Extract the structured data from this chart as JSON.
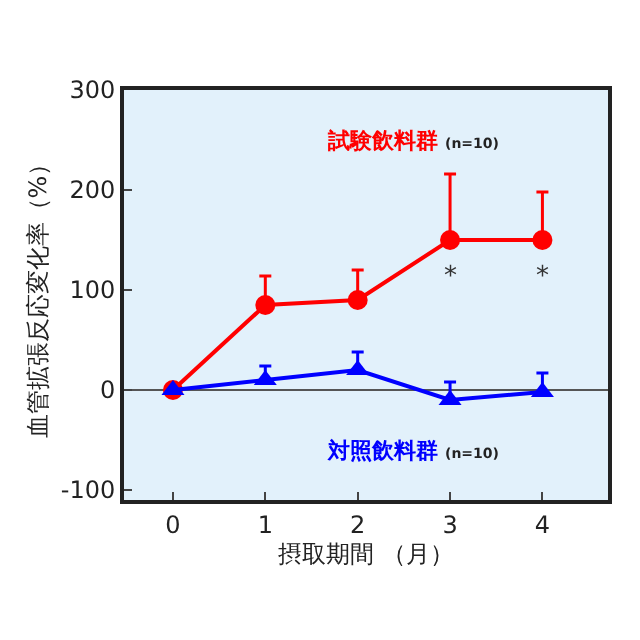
{
  "chart_data": {
    "type": "line",
    "xlabel": "摂取期間 （月）",
    "ylabel": "血管拡張反応変化率（%）",
    "x": [
      0,
      1,
      2,
      3,
      4
    ],
    "xlim": [
      -0.53,
      4.71
    ],
    "xticks": [
      0,
      1,
      2,
      3,
      4
    ],
    "ylim": [
      -110,
      300
    ],
    "yticks": [
      -100,
      0,
      100,
      200,
      300
    ],
    "grid": false,
    "legend": false,
    "series": [
      {
        "name": "試験飲料群 (n=10)",
        "color": "#ff0000",
        "marker": "circle",
        "values": [
          0,
          85,
          90,
          150,
          150
        ],
        "errors": [
          null,
          [
            85,
            114
          ],
          [
            90,
            120
          ],
          [
            150,
            216
          ],
          [
            150,
            198
          ]
        ]
      },
      {
        "name": "対照飲料群 (n=10)",
        "color": "#0000ff",
        "marker": "triangle",
        "values": [
          0,
          10,
          20,
          -10,
          -2
        ],
        "errors": [
          null,
          [
            10,
            24
          ],
          [
            20,
            38
          ],
          [
            -10,
            8
          ],
          [
            -2,
            17
          ]
        ]
      }
    ],
    "ref_lines": [
      {
        "axis": "y",
        "value": 0,
        "color": "#555555"
      }
    ],
    "annotations": [
      {
        "text": "*",
        "x": 3,
        "y": 150
      },
      {
        "text": "*",
        "x": 4,
        "y": 150
      }
    ]
  }
}
